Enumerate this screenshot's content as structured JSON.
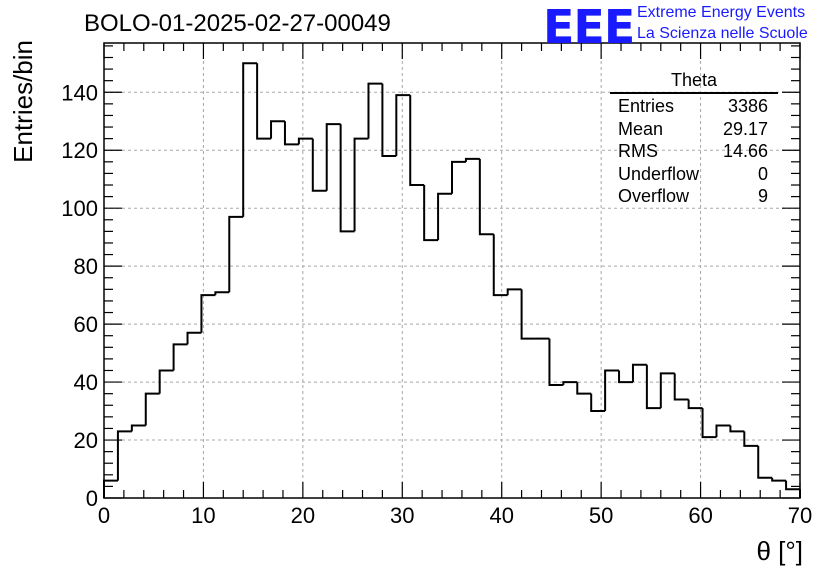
{
  "header": {
    "run_title": "BOLO-01-2025-02-27-00049",
    "logo_mark": "EEE",
    "logo_line1": "Extreme Energy Events",
    "logo_line2": "La Scienza nelle Scuole"
  },
  "stats_box": {
    "title": "Theta",
    "rows": [
      {
        "label": "Entries",
        "value": "3386"
      },
      {
        "label": "Mean",
        "value": "29.17"
      },
      {
        "label": "RMS",
        "value": "14.66"
      },
      {
        "label": "Underflow",
        "value": "0"
      },
      {
        "label": "Overflow",
        "value": "9"
      }
    ]
  },
  "colors": {
    "logo": "#1a1aff",
    "line": "#000000",
    "grid": "#a8a8a8"
  },
  "chart_data": {
    "type": "bar",
    "style": "step-histogram",
    "title": "BOLO-01-2025-02-27-00049",
    "xlabel": "θ [°]",
    "ylabel": "Entries/bin",
    "xlim": [
      0,
      70
    ],
    "ylim": [
      0,
      157
    ],
    "grid": true,
    "bin_width": 1.4,
    "bin_edges_start": 0,
    "values": [
      6,
      23,
      25,
      36,
      44,
      53,
      57,
      70,
      71,
      97,
      150,
      124,
      130,
      122,
      124,
      106,
      129,
      92,
      124,
      143,
      118,
      139,
      108,
      89,
      105,
      116,
      117,
      91,
      70,
      72,
      55,
      55,
      39,
      40,
      36,
      30,
      44,
      40,
      46,
      31,
      43,
      34,
      31,
      21,
      25,
      23,
      18,
      7,
      6,
      3
    ],
    "x_ticks": [
      "0",
      "10",
      "20",
      "30",
      "40",
      "50",
      "60",
      "70"
    ],
    "y_ticks": [
      "0",
      "20",
      "40",
      "60",
      "80",
      "100",
      "120",
      "140"
    ]
  }
}
